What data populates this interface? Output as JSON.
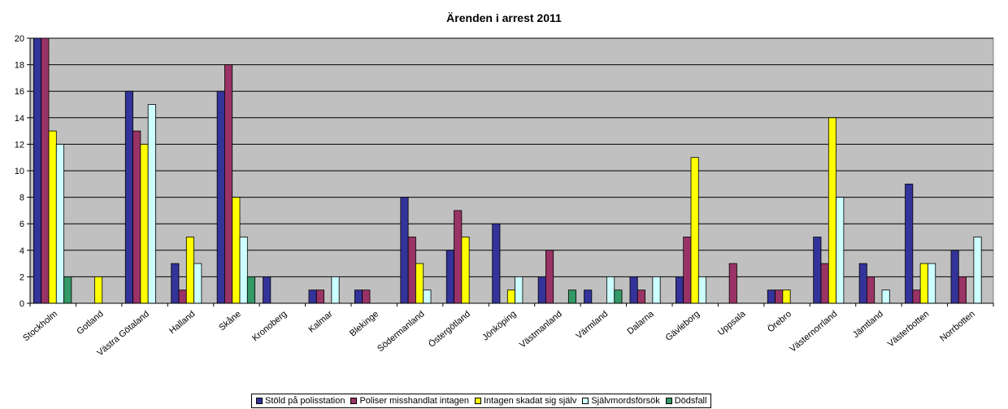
{
  "chart_data": {
    "type": "bar",
    "title": "Ärenden i arrest 2011",
    "xlabel": "",
    "ylabel": "",
    "ylim": [
      0,
      20
    ],
    "yticks": [
      0,
      2,
      4,
      6,
      8,
      10,
      12,
      14,
      16,
      18,
      20
    ],
    "grid": true,
    "legend_position": "bottom",
    "plot_background": "#c0c0c0",
    "categories": [
      "Stockholm",
      "Gotland",
      "Västra Götaland",
      "Halland",
      "Skåne",
      "Kronoberg",
      "Kalmar",
      "Blekinge",
      "Södermanland",
      "Östergötland",
      "Jönköping",
      "Västmanland",
      "Värmland",
      "Dalarna",
      "Gävleborg",
      "Uppsala",
      "Örebro",
      "Västernorrland",
      "Jämtland",
      "Västerbotten",
      "Norrbotten"
    ],
    "series": [
      {
        "name": "Stöld på polisstation",
        "color": "#333399",
        "values": [
          20,
          0,
          16,
          3,
          16,
          2,
          1,
          1,
          8,
          4,
          6,
          2,
          1,
          2,
          2,
          0,
          1,
          5,
          3,
          9,
          4
        ]
      },
      {
        "name": "Poliser misshandlat intagen",
        "color": "#993366",
        "values": [
          20,
          0,
          13,
          1,
          18,
          0,
          1,
          1,
          5,
          7,
          0,
          4,
          0,
          1,
          5,
          3,
          1,
          3,
          2,
          1,
          2
        ]
      },
      {
        "name": "Intagen skadat sig själv",
        "color": "#ffff00",
        "values": [
          13,
          2,
          12,
          5,
          8,
          0,
          0,
          0,
          3,
          5,
          1,
          0,
          0,
          0,
          11,
          0,
          1,
          14,
          0,
          3,
          0
        ]
      },
      {
        "name": "Självmordsförsök",
        "color": "#ccffff",
        "values": [
          12,
          0,
          15,
          3,
          5,
          0,
          2,
          0,
          1,
          0,
          2,
          0,
          2,
          2,
          2,
          0,
          0,
          8,
          1,
          3,
          5
        ]
      },
      {
        "name": "Dödsfall",
        "color": "#339966",
        "values": [
          2,
          0,
          0,
          0,
          2,
          0,
          0,
          0,
          0,
          0,
          0,
          1,
          1,
          0,
          0,
          0,
          0,
          0,
          0,
          0,
          0
        ]
      }
    ]
  }
}
